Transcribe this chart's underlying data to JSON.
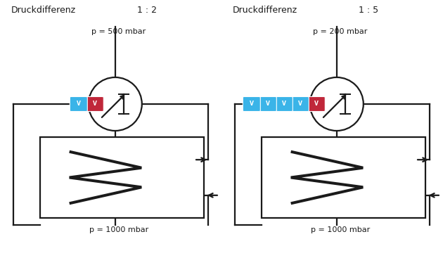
{
  "bg_color": "#ffffff",
  "line_color": "#1a1a1a",
  "blue_color": "#3ab4e8",
  "red_color": "#c0273a",
  "text_color": "#1a1a1a",
  "diagram1": {
    "title": "Druckdifferenz",
    "ratio": "1 : 2",
    "p_top": "p = 500 mbar",
    "p_bottom": "p = 1000 mbar",
    "num_blue_valves": 1
  },
  "diagram2": {
    "title": "Druckdifferenz",
    "ratio": "1 : 5",
    "p_top": "p = 200 mbar",
    "p_bottom": "p = 1000 mbar",
    "num_blue_valves": 4
  }
}
